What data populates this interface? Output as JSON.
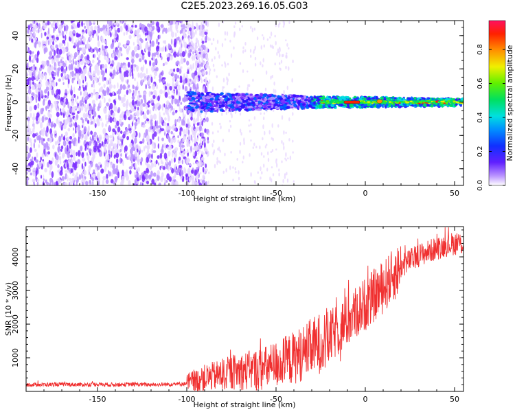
{
  "title": "C2E5.2023.269.16.05.G03",
  "colors": {
    "snr_line": "#f03030",
    "axis": "#000000",
    "colormap": [
      "#ffffff",
      "#e8d8ff",
      "#b890ff",
      "#7a2cff",
      "#3010ff",
      "#0060ff",
      "#00e0e0",
      "#00e060",
      "#60f000",
      "#f0f000",
      "#ff9000",
      "#ff2000",
      "#ff1060"
    ]
  },
  "chart_data": [
    {
      "type": "heatmap",
      "name": "spectrogram",
      "xlabel": "Height of straight line (km)",
      "ylabel": "Frequency (Hz)",
      "xlim": [
        -190,
        55
      ],
      "ylim": [
        -50,
        49
      ],
      "xticks": [
        -150,
        -100,
        -50,
        0,
        50
      ],
      "yticks": [
        -40,
        -20,
        0,
        20,
        40
      ],
      "colorbar": {
        "label": "Normalized spectral amplitude",
        "range": [
          0,
          0.97
        ],
        "ticks": [
          "0.0",
          "0.2",
          "0.4",
          "0.6",
          "0.8"
        ]
      },
      "features": {
        "noise_region_x": [
          -190,
          -100
        ],
        "signal_band_start_x": -100,
        "signal_center_freq": 0
      }
    },
    {
      "type": "line",
      "name": "snr",
      "xlabel": "Height of straight line (km)",
      "ylabel": "SNR (10 * v/v)",
      "xlim": [
        -190,
        55
      ],
      "ylim": [
        0,
        4900
      ],
      "xticks": [
        -150,
        -100,
        -50,
        0,
        50
      ],
      "yticks": [
        1000,
        2000,
        3000,
        4000
      ],
      "series": [
        {
          "x": [
            -190,
            -180,
            -170,
            -160,
            -150,
            -140,
            -130,
            -120,
            -110,
            -100,
            -95,
            -90,
            -85,
            -80,
            -75,
            -70,
            -65,
            -60,
            -55,
            -50,
            -45,
            -40,
            -35,
            -30,
            -25,
            -20,
            -15,
            -10,
            -5,
            0,
            5,
            10,
            15,
            20,
            25,
            30,
            35,
            40,
            45,
            50,
            55
          ],
          "y": [
            200,
            200,
            210,
            200,
            210,
            200,
            210,
            200,
            210,
            230,
            300,
            400,
            450,
            500,
            560,
            600,
            620,
            650,
            700,
            800,
            900,
            1000,
            1150,
            1300,
            1450,
            1600,
            1850,
            2100,
            2350,
            2600,
            2850,
            3100,
            3400,
            3700,
            3900,
            4050,
            4150,
            4250,
            4350,
            4400,
            4400
          ]
        }
      ]
    }
  ]
}
